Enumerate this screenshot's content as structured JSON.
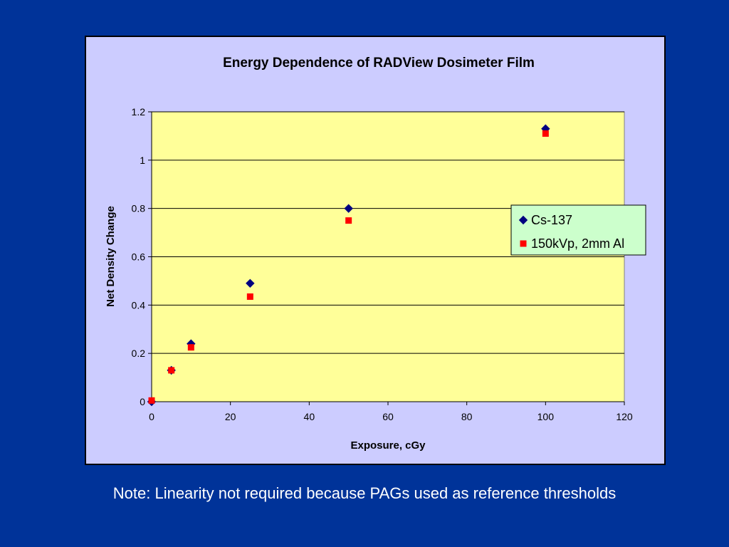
{
  "slide": {
    "background": "#003399",
    "note": "Note: Linearity not required because PAGs used as reference thresholds"
  },
  "colors": {
    "chart_area": "#CCCCFF",
    "plot_area": "#FFFF99",
    "legend_bg": "#CCFFCC",
    "gridline": "#000000"
  },
  "chart_data": {
    "type": "scatter",
    "title": "Energy Dependence of RADView Dosimeter Film",
    "xlabel": "Exposure, cGy",
    "ylabel": "Net Density Change",
    "xlim": [
      0,
      120
    ],
    "ylim": [
      0,
      1.2
    ],
    "xticks": [
      "0",
      "20",
      "40",
      "60",
      "80",
      "100",
      "120"
    ],
    "yticks": [
      "0",
      "0.2",
      "0.4",
      "0.6",
      "0.8",
      "1",
      "1.2"
    ],
    "grid": "horizontal major gridlines",
    "legend_position": "right",
    "series": [
      {
        "name": "Cs-137",
        "marker": "diamond",
        "color": "#000080",
        "x": [
          0,
          5,
          10,
          25,
          50,
          100
        ],
        "y": [
          0,
          0.13,
          0.24,
          0.49,
          0.8,
          1.13
        ]
      },
      {
        "name": "150kVp, 2mm Al",
        "marker": "square",
        "color": "#FF0000",
        "x": [
          0,
          5,
          10,
          25,
          50,
          100
        ],
        "y": [
          0.005,
          0.13,
          0.225,
          0.435,
          0.75,
          1.11
        ]
      }
    ]
  }
}
